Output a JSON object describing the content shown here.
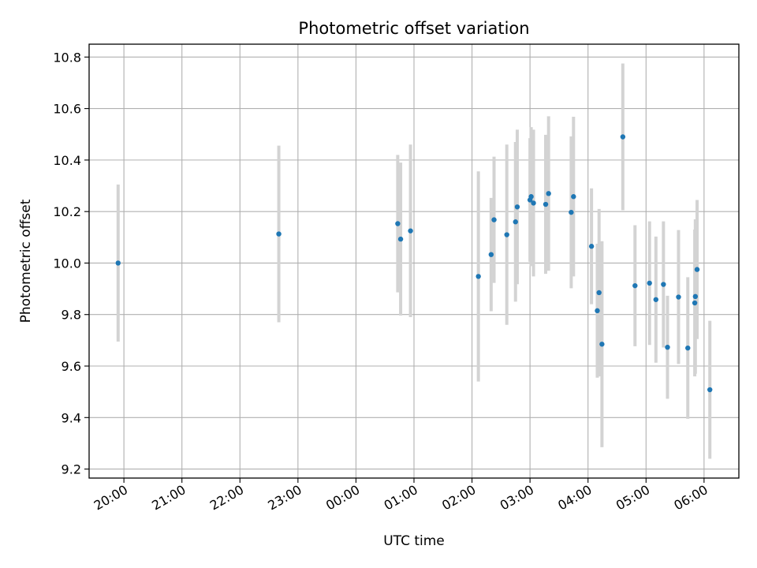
{
  "chart_data": {
    "type": "scatter",
    "title": "Photometric offset variation",
    "xlabel": "UTC time",
    "ylabel": "Photometric offset",
    "x_tick_labels": [
      "20:00",
      "21:00",
      "22:00",
      "23:00",
      "00:00",
      "01:00",
      "02:00",
      "03:00",
      "04:00",
      "05:00",
      "06:00"
    ],
    "x_tick_hours": [
      20,
      21,
      22,
      23,
      24,
      25,
      26,
      27,
      28,
      29,
      30
    ],
    "y_ticks": [
      9.2,
      9.4,
      9.6,
      9.8,
      10.0,
      10.2,
      10.4,
      10.6,
      10.8
    ],
    "y_tick_labels": [
      "9.2",
      "9.4",
      "9.6",
      "9.8",
      "10.0",
      "10.2",
      "10.4",
      "10.6",
      "10.8"
    ],
    "xlim_hours": [
      19.4,
      30.6
    ],
    "ylim": [
      9.165,
      10.85
    ],
    "grid": true,
    "errorbar_color": "#d3d3d3",
    "point_color": "#1f77b4",
    "points": [
      {
        "hour": 19.9,
        "y": 10.0,
        "err": 0.305
      },
      {
        "hour": 22.67,
        "y": 10.113,
        "err": 0.343
      },
      {
        "hour": 24.72,
        "y": 10.153,
        "err": 0.267
      },
      {
        "hour": 24.77,
        "y": 10.093,
        "err": 0.297
      },
      {
        "hour": 24.94,
        "y": 10.125,
        "err": 0.335
      },
      {
        "hour": 26.11,
        "y": 9.948,
        "err": 0.408
      },
      {
        "hour": 26.33,
        "y": 10.033,
        "err": 0.22
      },
      {
        "hour": 26.38,
        "y": 10.168,
        "err": 0.245
      },
      {
        "hour": 26.6,
        "y": 10.11,
        "err": 0.35
      },
      {
        "hour": 26.75,
        "y": 10.16,
        "err": 0.31
      },
      {
        "hour": 26.78,
        "y": 10.218,
        "err": 0.3
      },
      {
        "hour": 27.0,
        "y": 10.245,
        "err": 0.24
      },
      {
        "hour": 27.02,
        "y": 10.258,
        "err": 0.27
      },
      {
        "hour": 27.06,
        "y": 10.233,
        "err": 0.285
      },
      {
        "hour": 27.27,
        "y": 10.228,
        "err": 0.27
      },
      {
        "hour": 27.32,
        "y": 10.27,
        "err": 0.3
      },
      {
        "hour": 27.71,
        "y": 10.197,
        "err": 0.295
      },
      {
        "hour": 27.75,
        "y": 10.258,
        "err": 0.31
      },
      {
        "hour": 28.06,
        "y": 10.065,
        "err": 0.225
      },
      {
        "hour": 28.16,
        "y": 9.815,
        "err": 0.26
      },
      {
        "hour": 28.19,
        "y": 9.885,
        "err": 0.325
      },
      {
        "hour": 28.24,
        "y": 9.685,
        "err": 0.4
      },
      {
        "hour": 28.6,
        "y": 10.49,
        "err": 0.285
      },
      {
        "hour": 28.81,
        "y": 9.912,
        "err": 0.235
      },
      {
        "hour": 29.06,
        "y": 9.922,
        "err": 0.24
      },
      {
        "hour": 29.17,
        "y": 9.858,
        "err": 0.245
      },
      {
        "hour": 29.3,
        "y": 9.917,
        "err": 0.245
      },
      {
        "hour": 29.37,
        "y": 9.673,
        "err": 0.2
      },
      {
        "hour": 29.56,
        "y": 9.868,
        "err": 0.26
      },
      {
        "hour": 29.72,
        "y": 9.67,
        "err": 0.275
      },
      {
        "hour": 29.84,
        "y": 9.845,
        "err": 0.285
      },
      {
        "hour": 29.85,
        "y": 9.87,
        "err": 0.3
      },
      {
        "hour": 29.88,
        "y": 9.975,
        "err": 0.27
      },
      {
        "hour": 30.1,
        "y": 9.508,
        "err": 0.268
      }
    ]
  }
}
